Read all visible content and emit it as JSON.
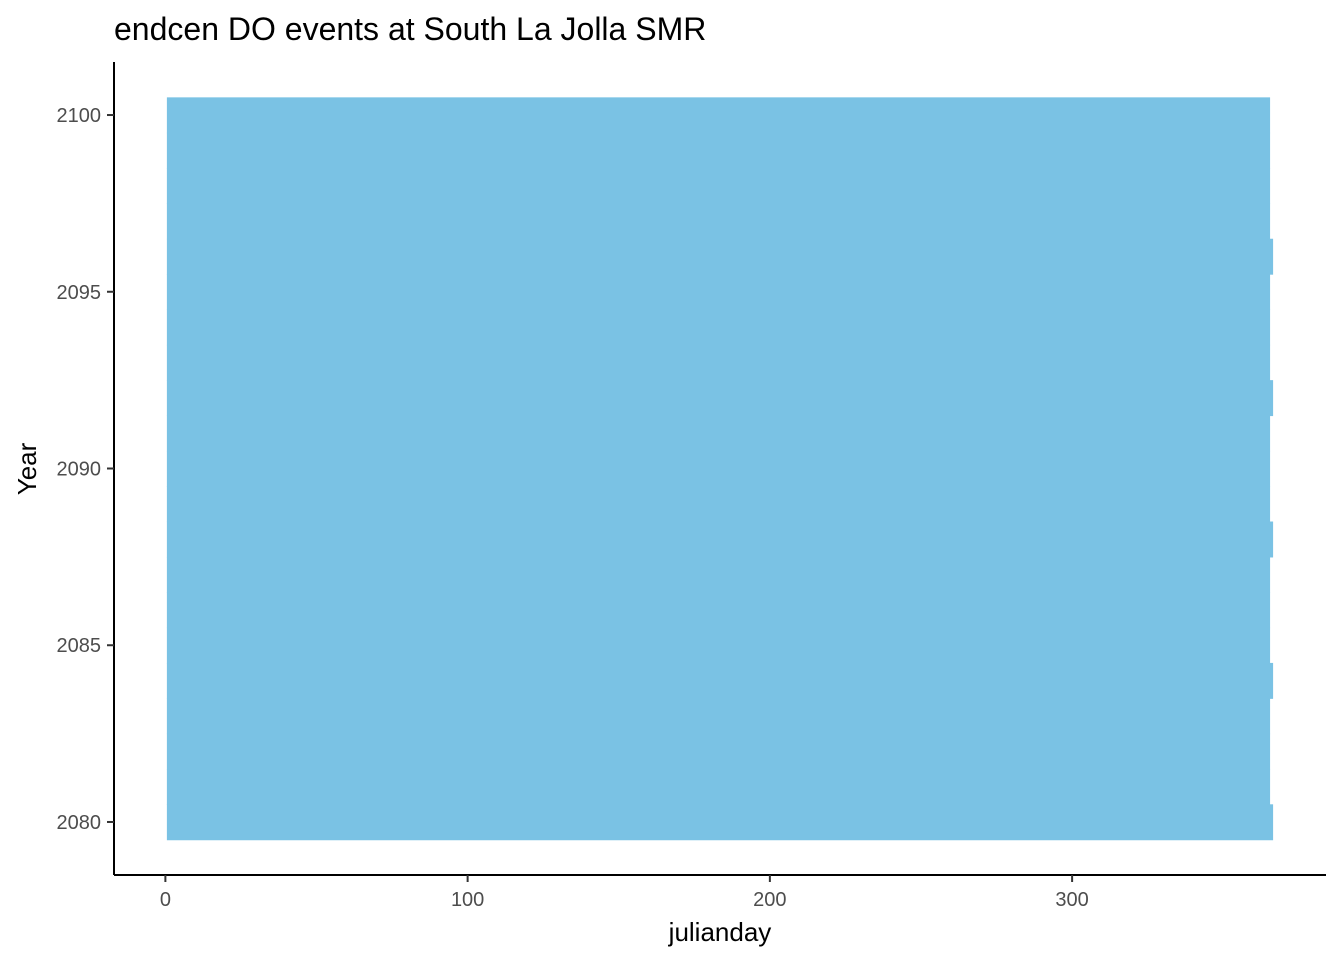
{
  "chart_data": {
    "type": "bar",
    "orientation": "horizontal",
    "title": "endcen DO events at South La Jolla SMR",
    "xlabel": "julianday",
    "ylabel": "Year",
    "xlim": [
      -17,
      384
    ],
    "ylim": [
      2078.5,
      2101.5
    ],
    "x_ticks": [
      0,
      100,
      200,
      300
    ],
    "y_ticks": [
      2080,
      2085,
      2090,
      2095,
      2100
    ],
    "grid": false,
    "legend": "none",
    "bar_color": "#7AC2E4",
    "bars": [
      {
        "year": 2080,
        "start": 1,
        "end": 366
      },
      {
        "year": 2081,
        "start": 1,
        "end": 365
      },
      {
        "year": 2082,
        "start": 1,
        "end": 365
      },
      {
        "year": 2083,
        "start": 1,
        "end": 365
      },
      {
        "year": 2084,
        "start": 1,
        "end": 366
      },
      {
        "year": 2085,
        "start": 1,
        "end": 365
      },
      {
        "year": 2086,
        "start": 1,
        "end": 365
      },
      {
        "year": 2087,
        "start": 1,
        "end": 365
      },
      {
        "year": 2088,
        "start": 1,
        "end": 366
      },
      {
        "year": 2089,
        "start": 1,
        "end": 365
      },
      {
        "year": 2090,
        "start": 1,
        "end": 365
      },
      {
        "year": 2091,
        "start": 1,
        "end": 365
      },
      {
        "year": 2092,
        "start": 1,
        "end": 366
      },
      {
        "year": 2093,
        "start": 1,
        "end": 365
      },
      {
        "year": 2094,
        "start": 1,
        "end": 365
      },
      {
        "year": 2095,
        "start": 1,
        "end": 365
      },
      {
        "year": 2096,
        "start": 1,
        "end": 366
      },
      {
        "year": 2097,
        "start": 1,
        "end": 365
      },
      {
        "year": 2098,
        "start": 1,
        "end": 365
      },
      {
        "year": 2099,
        "start": 1,
        "end": 365
      },
      {
        "year": 2100,
        "start": 1,
        "end": 365
      }
    ]
  }
}
